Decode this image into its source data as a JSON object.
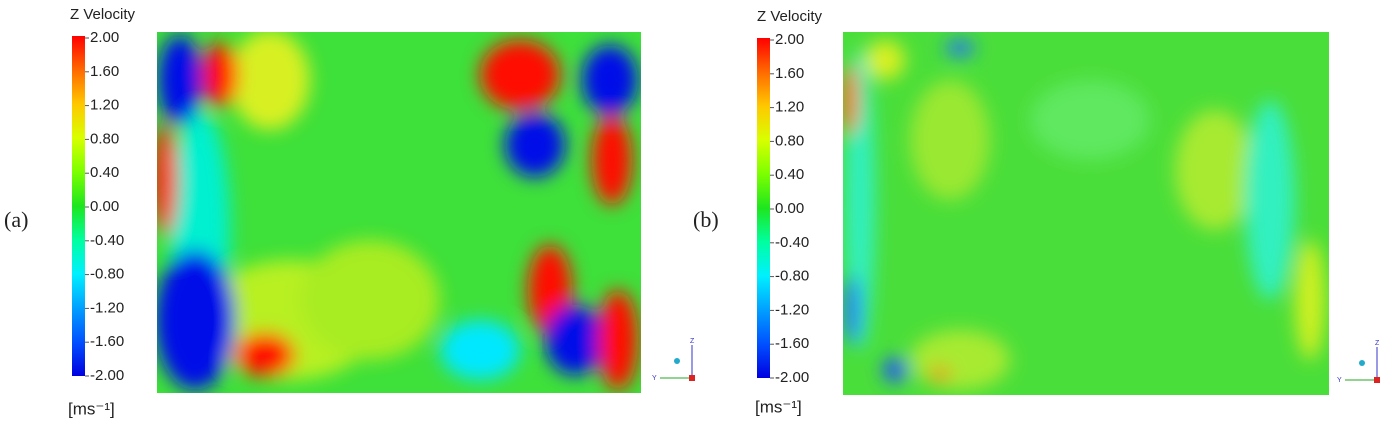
{
  "panels": [
    {
      "label": "(a)",
      "colorbar": {
        "title": "Z Velocity",
        "labels": [
          "2.00",
          "1.60",
          "1.20",
          "0.80",
          "0.40",
          "0.00",
          "-0.40",
          "-0.80",
          "-1.20",
          "-1.60",
          "-2.00"
        ],
        "unit": "[ms⁻¹]"
      },
      "axes": {
        "z": "Z",
        "y": "Y"
      }
    },
    {
      "label": "(b)",
      "colorbar": {
        "title": "Z Velocity",
        "labels": [
          "2.00",
          "1.60",
          "1.20",
          "0.80",
          "0.40",
          "0.00",
          "-0.40",
          "-0.80",
          "-1.20",
          "-1.60",
          "-2.00"
        ],
        "unit": "[ms⁻¹]"
      },
      "axes": {
        "z": "Z",
        "y": "Y"
      }
    }
  ]
}
